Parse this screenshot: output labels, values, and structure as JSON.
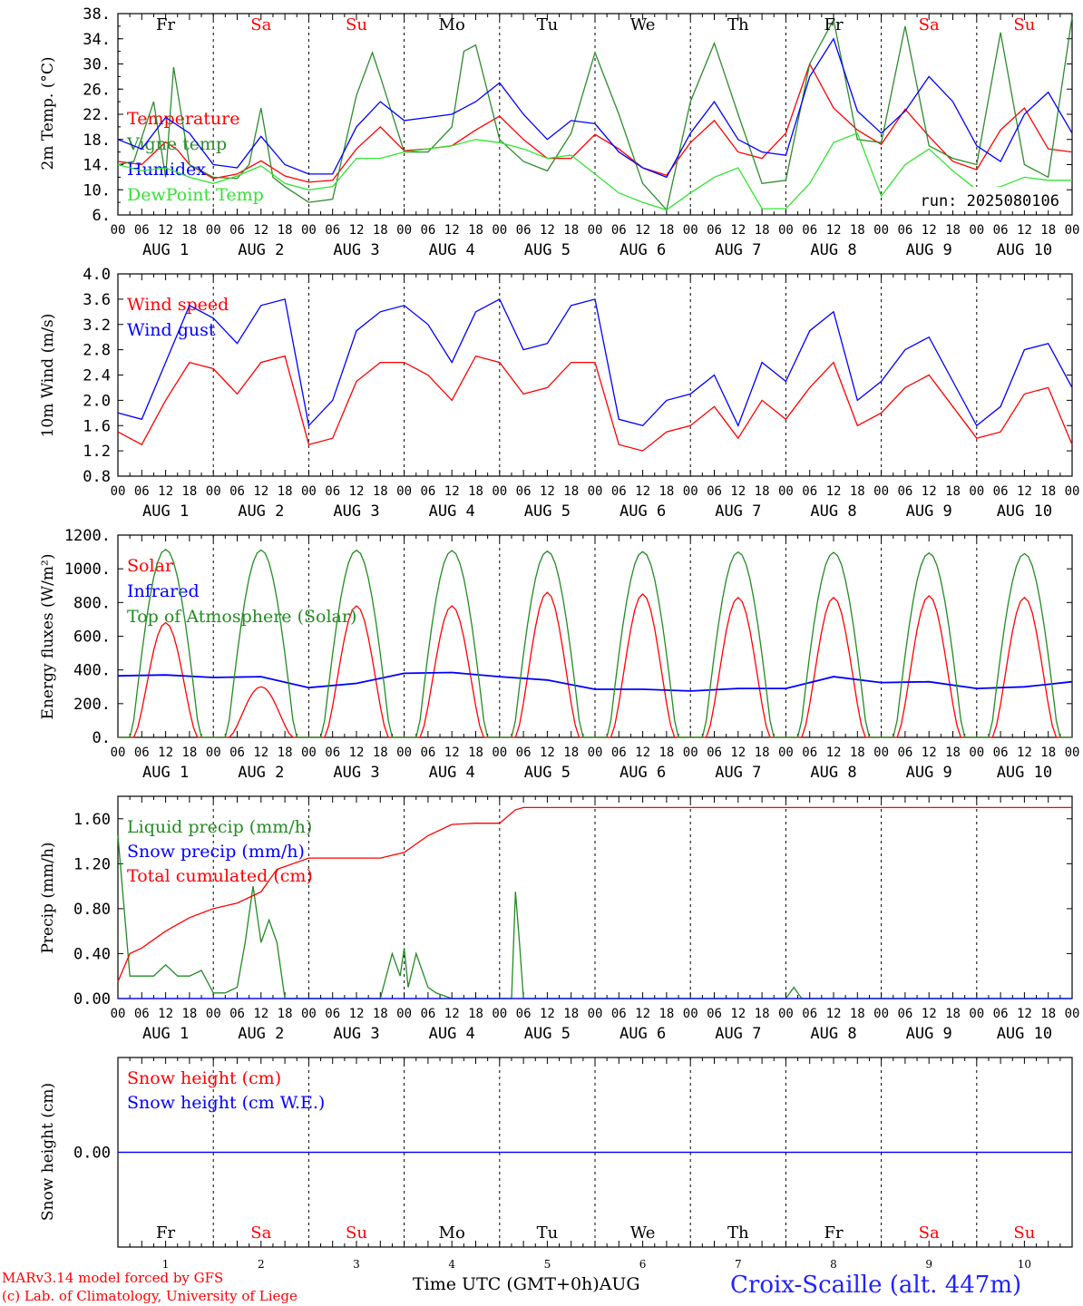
{
  "chart_data": [
    {
      "type": "line",
      "ylabel": "2m Temp. (°C)",
      "ylim": [
        6,
        38
      ],
      "yticks": [
        "6.",
        "10.",
        "14.",
        "18.",
        "22.",
        "26.",
        "30.",
        "34.",
        "38."
      ],
      "x_unit": "hours since AUG 1 00 UTC",
      "grid": "vertical dashed lines at 00 UTC each day",
      "legend_location": "left",
      "annotation": "run: 2025080106",
      "series": [
        {
          "name": "Temperature",
          "color": "#ff0000",
          "x": [
            0,
            6,
            12,
            15,
            18,
            24,
            30,
            36,
            42,
            48,
            54,
            60,
            66,
            72,
            78,
            84,
            90,
            96,
            102,
            108,
            114,
            120,
            126,
            132,
            138,
            144,
            150,
            156,
            162,
            168,
            174,
            180,
            186,
            192,
            198,
            204,
            210,
            216,
            222,
            228,
            234,
            240
          ],
          "y": [
            14.5,
            14,
            17.6,
            16.3,
            14,
            11.8,
            12.5,
            14.6,
            12.2,
            11.2,
            11.5,
            16.5,
            20,
            16.2,
            16.5,
            17,
            19.5,
            21.7,
            18,
            15,
            15,
            18.8,
            16.5,
            13.5,
            12.3,
            17.5,
            21,
            16,
            15,
            19,
            30,
            23,
            19.5,
            17.2,
            22.8,
            18.5,
            14.5,
            13.2,
            19.5,
            23,
            16.5,
            16
          ]
        },
        {
          "name": "Vigne temp",
          "color": "#2e8b2e",
          "x": [
            0,
            4,
            9,
            12,
            14,
            18,
            24,
            30,
            33,
            36,
            39,
            42,
            48,
            54,
            60,
            64,
            66,
            72,
            78,
            84,
            87,
            90,
            96,
            102,
            108,
            114,
            120,
            126,
            132,
            138,
            144,
            150,
            156,
            162,
            168,
            174,
            180,
            186,
            192,
            198,
            204,
            210,
            216,
            222,
            228,
            234,
            240
          ],
          "y": [
            14,
            14.5,
            24,
            12,
            29.5,
            14,
            12,
            11.8,
            14,
            23,
            12,
            10.5,
            8,
            8.5,
            25,
            31.8,
            28,
            16,
            16,
            20,
            32,
            33,
            18,
            14.5,
            13,
            19,
            31.8,
            22,
            11,
            6.8,
            24,
            33.3,
            22,
            11,
            11.5,
            30,
            37,
            18,
            17.5,
            36,
            17,
            15,
            14,
            35,
            14,
            12,
            37.5
          ]
        },
        {
          "name": "Humidex",
          "color": "#0000ff",
          "x": [
            0,
            6,
            12,
            18,
            24,
            30,
            36,
            42,
            48,
            54,
            60,
            66,
            72,
            78,
            84,
            90,
            96,
            102,
            108,
            114,
            120,
            126,
            132,
            138,
            144,
            150,
            156,
            162,
            168,
            174,
            180,
            186,
            192,
            198,
            204,
            210,
            216,
            222,
            228,
            234,
            240
          ],
          "y": [
            18,
            16.5,
            21.5,
            19,
            14,
            13.5,
            18.5,
            14,
            12.5,
            12.5,
            20,
            24,
            21,
            21.5,
            22,
            24,
            27,
            22,
            18,
            21,
            20.5,
            16,
            13.5,
            12,
            19,
            24,
            18,
            16,
            15.5,
            28,
            34,
            22.5,
            19,
            22.5,
            28,
            24,
            17,
            14.5,
            22,
            25.5,
            19
          ]
        },
        {
          "name": "DewPoint Temp",
          "color": "#33e333",
          "x": [
            0,
            6,
            12,
            18,
            24,
            30,
            36,
            42,
            48,
            54,
            60,
            66,
            72,
            78,
            84,
            90,
            96,
            102,
            108,
            114,
            120,
            126,
            132,
            138,
            144,
            150,
            156,
            162,
            168,
            174,
            180,
            186,
            192,
            198,
            204,
            210,
            216,
            222,
            228,
            234,
            240
          ],
          "y": [
            14,
            13,
            13.5,
            12,
            11,
            12.2,
            13.8,
            11,
            10,
            10.5,
            15,
            15,
            16,
            16.5,
            17,
            18,
            17.5,
            16.5,
            15,
            15.5,
            12.5,
            9.5,
            8,
            6.8,
            9.5,
            12,
            13.5,
            7,
            7,
            11,
            17.5,
            19,
            9,
            14,
            16.5,
            13,
            10,
            10.5,
            12,
            11.5,
            11.5
          ]
        }
      ]
    },
    {
      "type": "line",
      "ylabel": "10m Wind (m/s)",
      "ylim": [
        0.8,
        4.0
      ],
      "yticks": [
        "0.8",
        "1.2",
        "1.6",
        "2.0",
        "2.4",
        "2.8",
        "3.2",
        "3.6",
        "4.0"
      ],
      "grid": "vertical dashed lines at 00 UTC each day",
      "legend_location": "left",
      "series": [
        {
          "name": "Wind speed",
          "color": "#ff0000",
          "x": [
            0,
            6,
            12,
            18,
            24,
            30,
            36,
            42,
            48,
            54,
            60,
            66,
            72,
            78,
            84,
            90,
            96,
            102,
            108,
            114,
            120,
            126,
            132,
            138,
            144,
            150,
            156,
            162,
            168,
            174,
            180,
            186,
            192,
            198,
            204,
            210,
            216,
            222,
            228,
            234,
            240
          ],
          "y": [
            1.5,
            1.3,
            2.0,
            2.6,
            2.5,
            2.1,
            2.6,
            2.7,
            1.3,
            1.4,
            2.3,
            2.6,
            2.6,
            2.4,
            2.0,
            2.7,
            2.6,
            2.1,
            2.2,
            2.6,
            2.6,
            1.3,
            1.2,
            1.5,
            1.6,
            1.9,
            1.4,
            2.0,
            1.7,
            2.2,
            2.6,
            1.6,
            1.8,
            2.2,
            2.4,
            1.9,
            1.4,
            1.5,
            2.1,
            2.2,
            1.3
          ]
        },
        {
          "name": "Wind gust",
          "color": "#0000ff",
          "x": [
            0,
            6,
            12,
            18,
            24,
            30,
            36,
            42,
            48,
            54,
            60,
            66,
            72,
            78,
            84,
            90,
            96,
            102,
            108,
            114,
            120,
            126,
            132,
            138,
            144,
            150,
            156,
            162,
            168,
            174,
            180,
            186,
            192,
            198,
            204,
            210,
            216,
            222,
            228,
            234,
            240
          ],
          "y": [
            1.8,
            1.7,
            2.6,
            3.5,
            3.3,
            2.9,
            3.5,
            3.6,
            1.6,
            2.0,
            3.1,
            3.4,
            3.5,
            3.2,
            2.6,
            3.4,
            3.6,
            2.8,
            2.9,
            3.5,
            3.6,
            1.7,
            1.6,
            2.0,
            2.1,
            2.4,
            1.6,
            2.6,
            2.3,
            3.1,
            3.4,
            2.0,
            2.3,
            2.8,
            3.0,
            2.3,
            1.6,
            1.9,
            2.8,
            2.9,
            2.2
          ]
        }
      ]
    },
    {
      "type": "line",
      "ylabel": "Energy fluxes (W/m²)",
      "ylim": [
        0,
        1200
      ],
      "yticks": [
        "0.",
        "200.",
        "400.",
        "600.",
        "800.",
        "1000.",
        "1200."
      ],
      "grid": "vertical dashed lines at 00 UTC each day",
      "legend_location": "left",
      "series": [
        {
          "name": "Solar",
          "color": "#ff0000",
          "peaks": [
            680,
            300,
            780,
            780,
            860,
            850,
            830,
            830,
            840,
            830
          ]
        },
        {
          "name": "Infrared",
          "color": "#0000ff",
          "x": [
            0,
            12,
            24,
            36,
            48,
            60,
            72,
            84,
            96,
            108,
            120,
            132,
            144,
            156,
            168,
            180,
            192,
            204,
            216,
            228,
            240
          ],
          "y": [
            365,
            370,
            355,
            360,
            295,
            320,
            380,
            385,
            360,
            340,
            285,
            285,
            275,
            290,
            290,
            360,
            325,
            330,
            290,
            300,
            330
          ]
        },
        {
          "name": "Top of Atmosphere (Solar)",
          "color": "#228b22",
          "peaks": [
            1115,
            1112,
            1110,
            1108,
            1105,
            1102,
            1100,
            1097,
            1094,
            1090
          ]
        }
      ]
    },
    {
      "type": "line",
      "ylabel": "Precip (mm/h)",
      "ylim": [
        0,
        1.8
      ],
      "yticks": [
        "0.00",
        "0.40",
        "0.80",
        "1.20",
        "1.60"
      ],
      "grid": "vertical dashed lines at 00 UTC each day",
      "legend_location": "left",
      "series": [
        {
          "name": "Liquid precip (mm/h)",
          "color": "#228b22",
          "x": [
            0,
            3,
            6,
            9,
            12,
            15,
            18,
            21,
            24,
            27,
            30,
            32,
            34,
            36,
            38,
            40,
            42,
            48,
            60,
            66,
            69,
            71,
            72,
            73,
            75,
            78,
            80,
            84,
            96,
            99,
            100,
            101,
            102,
            104,
            120,
            168,
            170,
            172,
            240
          ],
          "y": [
            1.45,
            0.2,
            0.2,
            0.2,
            0.3,
            0.2,
            0.2,
            0.25,
            0.05,
            0.05,
            0.1,
            0.5,
            1.0,
            0.5,
            0.7,
            0.5,
            0.0,
            0.0,
            0.0,
            0.0,
            0.4,
            0.2,
            0.45,
            0.1,
            0.4,
            0.1,
            0.05,
            0.0,
            0.0,
            0.0,
            0.95,
            0.5,
            0.0,
            0.0,
            0.0,
            0.0,
            0.1,
            0.0,
            0.0
          ]
        },
        {
          "name": "Snow precip (mm/h)",
          "color": "#0000ff",
          "x": [
            0,
            240
          ],
          "y": [
            0,
            0
          ]
        },
        {
          "name": "Total cumulated (cm)",
          "color": "#ff0000",
          "x": [
            0,
            3,
            6,
            12,
            18,
            24,
            30,
            36,
            40,
            48,
            60,
            66,
            72,
            78,
            84,
            90,
            96,
            100,
            102,
            168,
            240
          ],
          "y": [
            0.15,
            0.4,
            0.45,
            0.6,
            0.72,
            0.8,
            0.85,
            0.95,
            1.15,
            1.25,
            1.25,
            1.25,
            1.3,
            1.45,
            1.55,
            1.56,
            1.56,
            1.68,
            1.7,
            1.7,
            1.7
          ]
        }
      ]
    },
    {
      "type": "line",
      "ylabel": "Snow height (cm)",
      "yticks": [
        "0.00"
      ],
      "legend_location": "left",
      "series": [
        {
          "name": "Snow height (cm)",
          "color": "#ff0000",
          "x": [
            0,
            240
          ],
          "y": [
            0,
            0
          ]
        },
        {
          "name": "Snow height (cm W.E.)",
          "color": "#0000ff",
          "x": [
            0,
            240
          ],
          "y": [
            0,
            0
          ]
        }
      ]
    }
  ],
  "days": [
    {
      "name": "Fr",
      "weekend": false,
      "num": "1"
    },
    {
      "name": "Sa",
      "weekend": true,
      "num": "2"
    },
    {
      "name": "Su",
      "weekend": true,
      "num": "3"
    },
    {
      "name": "Mo",
      "weekend": false,
      "num": "4"
    },
    {
      "name": "Tu",
      "weekend": false,
      "num": "5"
    },
    {
      "name": "We",
      "weekend": false,
      "num": "6"
    },
    {
      "name": "Th",
      "weekend": false,
      "num": "7"
    },
    {
      "name": "Fr",
      "weekend": false,
      "num": "8"
    },
    {
      "name": "Sa",
      "weekend": true,
      "num": "9"
    },
    {
      "name": "Su",
      "weekend": true,
      "num": "10"
    }
  ],
  "hour_labels": [
    "00",
    "06",
    "12",
    "18"
  ],
  "month_label": "AUG",
  "colors": {
    "weekend": "#ff0000",
    "weekday": "#000000"
  },
  "footer": {
    "credit1": "MARv3.14 model forced by GFS",
    "credit2": "(c) Lab. of Climatology, University of Liege",
    "x_title": "Time UTC (GMT+0h)AUG",
    "station": "Croix-Scaille (alt. 447m)"
  }
}
